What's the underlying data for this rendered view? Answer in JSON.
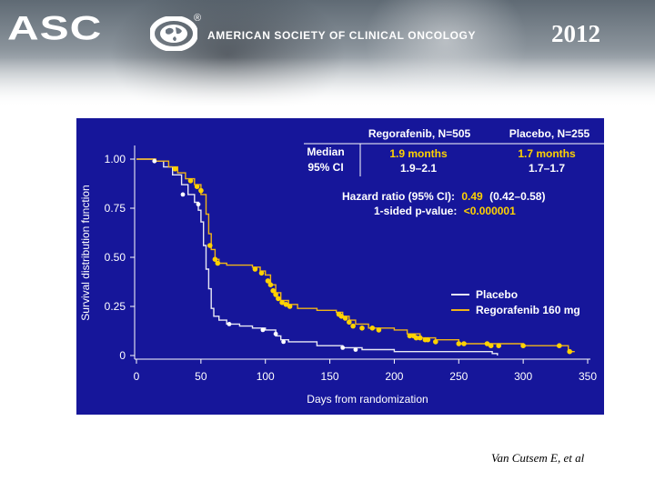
{
  "header": {
    "logo_text": "ASC",
    "registered_mark": "®",
    "organization": "AMERICAN SOCIETY OF CLINICAL ONCOLOGY",
    "year": "2012"
  },
  "citation": "Van Cutsem E, et al",
  "colors": {
    "background": "#16169a",
    "placebo": "#e8e8f4",
    "regorafenib": "#f0b418",
    "highlight": "#ffd200",
    "text": "#ffffff"
  },
  "chart_data": {
    "type": "line",
    "xlabel": "Days from randomization",
    "ylabel": "Survival distribution function",
    "xlim": [
      0,
      350
    ],
    "ylim": [
      0,
      1.0
    ],
    "xticks": [
      "0",
      "50",
      "100",
      "150",
      "200",
      "250",
      "300",
      "350"
    ],
    "yticks": [
      "0",
      "0.25",
      "0.50",
      "0.75",
      "1.00"
    ],
    "legend": [
      {
        "label": "Placebo",
        "series": "placebo"
      },
      {
        "label": "Regorafenib 160 mg",
        "series": "regorafenib"
      }
    ],
    "summary": {
      "col_headers": [
        "Regorafenib, N=505",
        "Placebo, N=255"
      ],
      "row_labels": [
        "Median",
        "95% CI"
      ],
      "median": [
        "1.9 months",
        "1.7 months"
      ],
      "ci": [
        "1.9–2.1",
        "1.7–1.7"
      ],
      "hr_label": "Hazard ratio (95% CI):",
      "hr_value": "0.49",
      "hr_ci": "(0.42–0.58)",
      "p_label": "1-sided p-value:",
      "p_value": "<0.000001"
    },
    "series": [
      {
        "name": "Placebo",
        "color": "#e8e8f4",
        "points": [
          [
            0,
            1.0
          ],
          [
            14,
            0.99
          ],
          [
            21,
            0.96
          ],
          [
            28,
            0.92
          ],
          [
            35,
            0.87
          ],
          [
            40,
            0.82
          ],
          [
            45,
            0.78
          ],
          [
            48,
            0.74
          ],
          [
            50,
            0.68
          ],
          [
            52,
            0.56
          ],
          [
            54,
            0.44
          ],
          [
            56,
            0.34
          ],
          [
            58,
            0.24
          ],
          [
            60,
            0.2
          ],
          [
            64,
            0.18
          ],
          [
            70,
            0.16
          ],
          [
            80,
            0.15
          ],
          [
            90,
            0.14
          ],
          [
            100,
            0.13
          ],
          [
            108,
            0.1
          ],
          [
            112,
            0.08
          ],
          [
            118,
            0.07
          ],
          [
            140,
            0.05
          ],
          [
            160,
            0.04
          ],
          [
            175,
            0.03
          ],
          [
            200,
            0.02
          ],
          [
            250,
            0.02
          ],
          [
            276,
            0.01
          ],
          [
            280,
            0.0
          ]
        ],
        "markers": [
          [
            14,
            0.99
          ],
          [
            36,
            0.82
          ],
          [
            48,
            0.77
          ],
          [
            72,
            0.16
          ],
          [
            98,
            0.13
          ],
          [
            108,
            0.11
          ],
          [
            114,
            0.07
          ],
          [
            160,
            0.04
          ],
          [
            170,
            0.03
          ]
        ]
      },
      {
        "name": "Regorafenib 160 mg",
        "color": "#f0b418",
        "points": [
          [
            0,
            1.0
          ],
          [
            15,
            0.99
          ],
          [
            25,
            0.96
          ],
          [
            32,
            0.93
          ],
          [
            38,
            0.9
          ],
          [
            45,
            0.87
          ],
          [
            50,
            0.82
          ],
          [
            54,
            0.72
          ],
          [
            56,
            0.62
          ],
          [
            58,
            0.54
          ],
          [
            61,
            0.49
          ],
          [
            64,
            0.47
          ],
          [
            70,
            0.46
          ],
          [
            80,
            0.46
          ],
          [
            90,
            0.45
          ],
          [
            96,
            0.43
          ],
          [
            100,
            0.41
          ],
          [
            104,
            0.36
          ],
          [
            108,
            0.32
          ],
          [
            112,
            0.28
          ],
          [
            118,
            0.26
          ],
          [
            125,
            0.24
          ],
          [
            140,
            0.23
          ],
          [
            155,
            0.22
          ],
          [
            160,
            0.2
          ],
          [
            165,
            0.18
          ],
          [
            170,
            0.16
          ],
          [
            180,
            0.14
          ],
          [
            200,
            0.13
          ],
          [
            210,
            0.11
          ],
          [
            220,
            0.09
          ],
          [
            232,
            0.08
          ],
          [
            250,
            0.06
          ],
          [
            270,
            0.06
          ],
          [
            300,
            0.05
          ],
          [
            330,
            0.05
          ],
          [
            335,
            0.02
          ],
          [
            340,
            0.02
          ]
        ],
        "markers": [
          [
            30,
            0.95
          ],
          [
            42,
            0.89
          ],
          [
            47,
            0.86
          ],
          [
            50,
            0.84
          ],
          [
            57,
            0.56
          ],
          [
            61,
            0.49
          ],
          [
            63,
            0.47
          ],
          [
            92,
            0.44
          ],
          [
            97,
            0.42
          ],
          [
            102,
            0.38
          ],
          [
            104,
            0.36
          ],
          [
            106,
            0.33
          ],
          [
            108,
            0.31
          ],
          [
            110,
            0.29
          ],
          [
            113,
            0.27
          ],
          [
            116,
            0.26
          ],
          [
            119,
            0.25
          ],
          [
            157,
            0.21
          ],
          [
            159,
            0.2
          ],
          [
            162,
            0.19
          ],
          [
            165,
            0.17
          ],
          [
            168,
            0.15
          ],
          [
            175,
            0.14
          ],
          [
            183,
            0.14
          ],
          [
            188,
            0.13
          ],
          [
            212,
            0.1
          ],
          [
            215,
            0.1
          ],
          [
            217,
            0.09
          ],
          [
            220,
            0.09
          ],
          [
            224,
            0.08
          ],
          [
            226,
            0.08
          ],
          [
            232,
            0.07
          ],
          [
            250,
            0.06
          ],
          [
            254,
            0.06
          ],
          [
            272,
            0.06
          ],
          [
            275,
            0.05
          ],
          [
            281,
            0.05
          ],
          [
            300,
            0.05
          ],
          [
            328,
            0.05
          ],
          [
            336,
            0.02
          ]
        ]
      }
    ]
  }
}
